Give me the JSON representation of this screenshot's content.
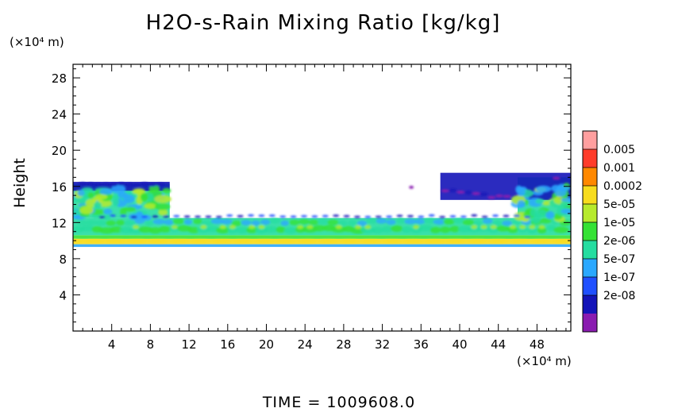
{
  "chart_data": {
    "type": "heatmap",
    "title": "H2O-s-Rain Mixing Ratio [kg/kg]",
    "ylabel": "Height",
    "xlabel": "",
    "x_unit": "(×10⁴ m)",
    "y_unit": "(×10⁴ m)",
    "xlim": [
      0,
      51.5
    ],
    "ylim": [
      0,
      29.5
    ],
    "x_ticks": [
      "4",
      "8",
      "12",
      "16",
      "20",
      "24",
      "28",
      "32",
      "36",
      "40",
      "44",
      "48"
    ],
    "y_ticks": [
      "4",
      "8",
      "12",
      "16",
      "20",
      "24",
      "28"
    ],
    "colorbar": {
      "labels": [
        "0.005",
        "0.001",
        "0.0002",
        "5e-05",
        "1e-05",
        "2e-06",
        "5e-07",
        "1e-07",
        "2e-08"
      ],
      "colors": [
        "#ff9f9f",
        "#ff3c2a",
        "#ff8800",
        "#f7dc1e",
        "#b6ea2d",
        "#35e235",
        "#25dda0",
        "#2aa8ff",
        "#2050ff",
        "#1414b8",
        "#8a1cb0"
      ]
    },
    "regions": [
      {
        "x": [
          0,
          51.5
        ],
        "y": [
          9.6,
          10.2
        ],
        "level": "0.0002"
      },
      {
        "x": [
          0,
          51.5
        ],
        "y": [
          9.3,
          9.6
        ],
        "level": "5e-07"
      },
      {
        "x": [
          0,
          51.5
        ],
        "y": [
          10.2,
          10.6
        ],
        "level": "1e-05"
      },
      {
        "x": [
          0,
          51.5
        ],
        "y": [
          10.6,
          12.5
        ],
        "level": "2e-06"
      },
      {
        "x": [
          0,
          10
        ],
        "y": [
          12.5,
          16.3
        ],
        "level": "2e-06"
      },
      {
        "x": [
          46,
          51.5
        ],
        "y": [
          12.5,
          17
        ],
        "level": "2e-06"
      },
      {
        "x": [
          0,
          10
        ],
        "y": [
          15.5,
          16.5
        ],
        "level": "2e-08"
      },
      {
        "x": [
          38,
          51.5
        ],
        "y": [
          14.5,
          17.5
        ],
        "level": "2e-08"
      }
    ],
    "grid": false
  },
  "footer": {
    "time_label": "TIME  =  1009608.0"
  }
}
